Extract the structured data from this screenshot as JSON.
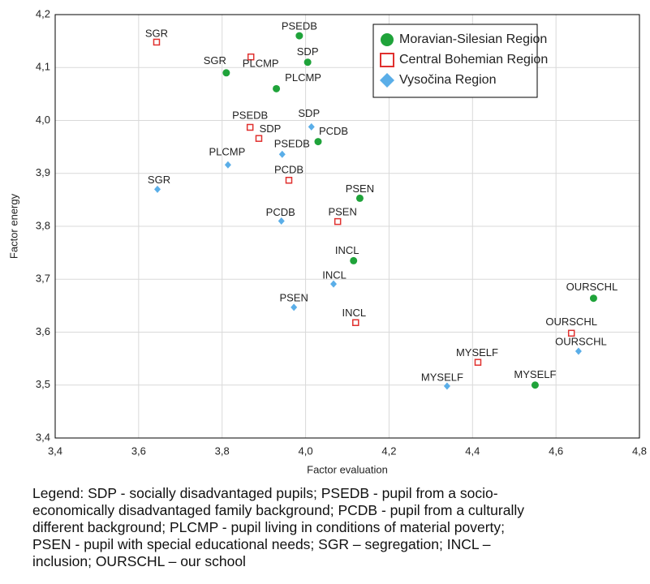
{
  "chart_data": {
    "type": "scatter",
    "x_label": "Factor evaluation",
    "y_label": "Factor energy",
    "xlim": [
      3.4,
      4.8
    ],
    "xticks": [
      {
        "value": 3.4,
        "label": "3,4"
      },
      {
        "value": 3.6,
        "label": "3,6"
      },
      {
        "value": 3.8,
        "label": "3,8"
      },
      {
        "value": 4.0,
        "label": "4,0"
      },
      {
        "value": 4.2,
        "label": "4,2"
      },
      {
        "value": 4.4,
        "label": "4,4"
      },
      {
        "value": 4.6,
        "label": "4,6"
      },
      {
        "value": 4.8,
        "label": "4,8"
      }
    ],
    "ylim": [
      3.4,
      4.2
    ],
    "yticks": [
      {
        "value": 3.4,
        "label": "3,4"
      },
      {
        "value": 3.5,
        "label": "3,5"
      },
      {
        "value": 3.6,
        "label": "3,6"
      },
      {
        "value": 3.7,
        "label": "3,7"
      },
      {
        "value": 3.8,
        "label": "3,8"
      },
      {
        "value": 3.9,
        "label": "3,9"
      },
      {
        "value": 4.0,
        "label": "4,0"
      },
      {
        "value": 4.1,
        "label": "4,1"
      },
      {
        "value": 4.2,
        "label": "4,2"
      }
    ],
    "grid": true,
    "legend": "upper right",
    "series": [
      {
        "name": "Moravian-Silesian Region",
        "color": "#1fa33a",
        "marker": "circle",
        "labels": [
          "PSEDB",
          "SDP",
          "SGR",
          "PLCMP",
          "PCDB",
          "PSEN",
          "INCL",
          "OURSCHL",
          "MYSELF"
        ],
        "x": [
          3.985,
          4.005,
          3.81,
          3.93,
          4.03,
          4.13,
          4.115,
          4.69,
          4.55
        ],
        "values": [
          4.16,
          4.11,
          4.09,
          4.06,
          3.96,
          3.853,
          3.735,
          3.664,
          3.5
        ]
      },
      {
        "name": "Central Bohemian Region",
        "color": "#e0302e",
        "marker": "square",
        "labels": [
          "SGR",
          "PLCMP",
          "PSEDB",
          "SDP",
          "PCDB",
          "PSEN",
          "INCL",
          "OURSCHL",
          "MYSELF"
        ],
        "x": [
          3.643,
          3.869,
          3.867,
          3.888,
          3.96,
          4.077,
          4.12,
          4.637,
          4.413
        ],
        "values": [
          4.148,
          4.12,
          3.987,
          3.966,
          3.887,
          3.809,
          3.618,
          3.598,
          3.543
        ]
      },
      {
        "name": "Vysočina Region",
        "color": "#5aaee8",
        "marker": "diamond",
        "labels": [
          "SGR",
          "PLCMP",
          "PSEDB",
          "SDP",
          "PCDB",
          "INCL",
          "PSEN",
          "OURSCHL",
          "MYSELF"
        ],
        "x": [
          3.645,
          3.814,
          3.944,
          4.014,
          3.942,
          4.067,
          3.972,
          4.654,
          4.339
        ],
        "values": [
          3.87,
          3.916,
          3.936,
          3.988,
          3.81,
          3.691,
          3.647,
          3.564,
          3.498
        ]
      }
    ],
    "caption": [
      "Legend: SDP - socially disadvantaged pupils; PSEDB - pupil from a socio-",
      "economically disadvantaged family background; PCDB - pupil from a culturally",
      "different background; PLCMP - pupil living in conditions of material poverty;",
      "PSEN - pupil with special educational needs; SGR – segregation; INCL –",
      "inclusion; OURSCHL – our school"
    ]
  }
}
